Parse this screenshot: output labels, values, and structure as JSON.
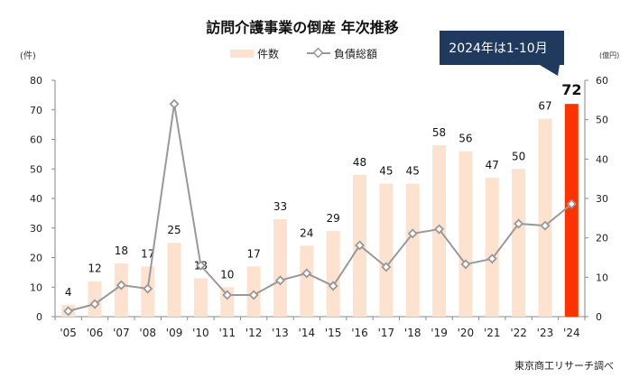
{
  "chart_data": {
    "type": "bar+line",
    "title": "訪問介護事業の倒産 年次推移",
    "callout": "2024年は1-10月",
    "source": "東京商工リサーチ調べ",
    "left_unit": "(件)",
    "right_unit": "(億円)",
    "categories": [
      "'05",
      "'06",
      "'07",
      "'08",
      "'09",
      "'10",
      "'11",
      "'12",
      "'13",
      "'14",
      "'15",
      "'16",
      "'17",
      "'18",
      "'19",
      "'20",
      "'21",
      "'22",
      "'23",
      "'24"
    ],
    "series": [
      {
        "name": "件数",
        "type": "bar",
        "axis": "left",
        "color": "#fde3cf",
        "highlight_color": "#ff3300",
        "values": [
          4,
          12,
          18,
          17,
          25,
          13,
          10,
          17,
          33,
          24,
          29,
          48,
          45,
          45,
          58,
          56,
          47,
          50,
          67,
          72
        ]
      },
      {
        "name": "負債総額",
        "type": "line",
        "axis": "right",
        "color": "#999999",
        "values": [
          1.4,
          3.2,
          8.0,
          7.1,
          54.0,
          13.0,
          5.5,
          5.5,
          9.2,
          11.0,
          7.8,
          18.1,
          12.6,
          21.1,
          22.2,
          13.3,
          14.7,
          23.6,
          23.1,
          28.6
        ]
      }
    ],
    "left_axis": {
      "range": [
        0,
        80
      ],
      "ticks": [
        0,
        10,
        20,
        30,
        40,
        50,
        60,
        70,
        80
      ]
    },
    "right_axis": {
      "range": [
        0,
        60
      ],
      "ticks": [
        0,
        10,
        20,
        30,
        40,
        50,
        60
      ]
    },
    "grid": false,
    "legend": "top-center"
  }
}
